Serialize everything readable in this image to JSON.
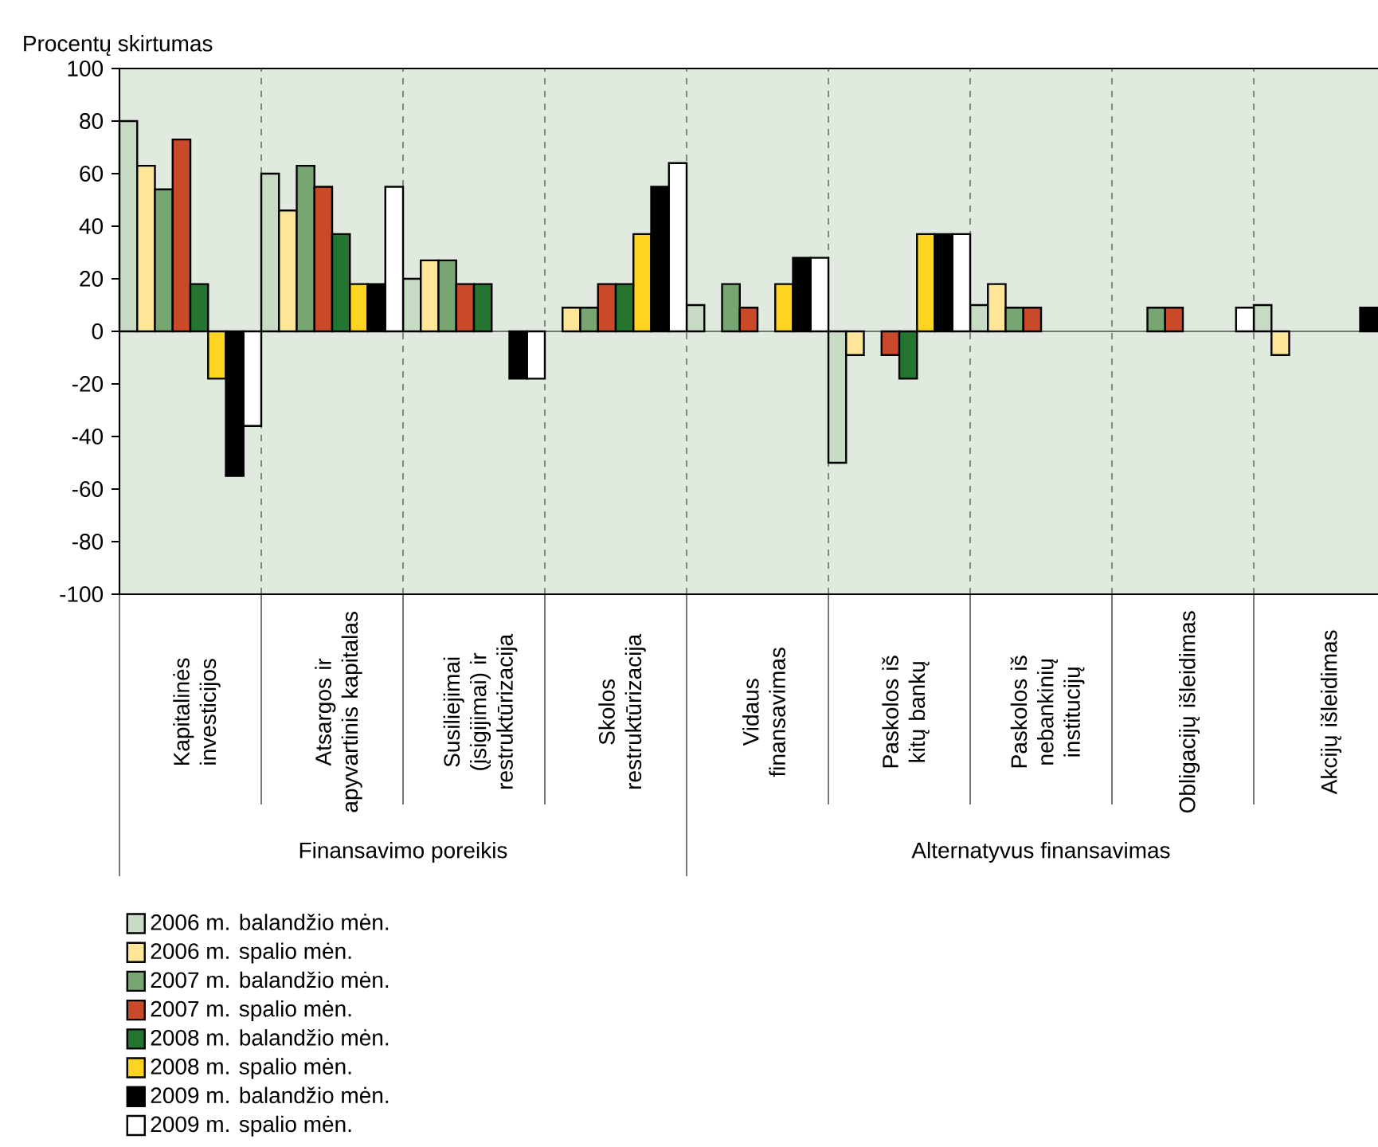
{
  "chart_data": {
    "type": "bar",
    "ylabel": "Procentų skirtumas",
    "categories": [
      "Kapitalinės investicijos",
      "Atsargos ir apyvartinis kapitalas",
      "Susiliejimai (įsigijimai) ir restruktūrizacija",
      "Skolos restruktūrizacija",
      "Vidaus finansavimas",
      "Paskolos iš kitų bankų",
      "Paskolos iš nebankinių institucijų",
      "Obligacijų išleidimas",
      "Akcijų išleidimas"
    ],
    "series": [
      {
        "name": "2006 m. balandžio mėn.",
        "color": "#c8dcc5",
        "values": [
          80,
          60,
          20,
          null,
          10,
          -50,
          10,
          null,
          10
        ]
      },
      {
        "name": "2006 m. spalio mėn.",
        "color": "#fde69a",
        "values": [
          63,
          46,
          27,
          9,
          null,
          -9,
          18,
          null,
          -9
        ]
      },
      {
        "name": "2007 m. balandžio mėn.",
        "color": "#78a672",
        "values": [
          54,
          63,
          27,
          9,
          18,
          null,
          9,
          9,
          null
        ]
      },
      {
        "name": "2007 m. spalio mėn.",
        "color": "#c84a2a",
        "values": [
          73,
          55,
          18,
          18,
          9,
          -9,
          9,
          9,
          null
        ]
      },
      {
        "name": "2008 m. balandžio mėn.",
        "color": "#237530",
        "values": [
          18,
          37,
          18,
          18,
          null,
          -18,
          null,
          null,
          null
        ]
      },
      {
        "name": "2008 m. spalio mėn.",
        "color": "#fed51e",
        "values": [
          -18,
          18,
          null,
          37,
          18,
          37,
          null,
          null,
          null
        ]
      },
      {
        "name": "2009 m. balandžio mėn.",
        "color": "#000000",
        "values": [
          -55,
          18,
          -18,
          55,
          28,
          37,
          null,
          null,
          9
        ]
      },
      {
        "name": "2009 m. spalio mėn.",
        "color": "#ffffff",
        "values": [
          -36,
          55,
          -18,
          64,
          28,
          37,
          null,
          9,
          null
        ]
      }
    ],
    "annotations": [
      "Finansavimo poreikis",
      "Alternatyvus finansavimas"
    ],
    "ylim": [
      -100,
      100
    ],
    "yticks": [
      -100,
      -80,
      -60,
      -40,
      -20,
      0,
      20,
      40,
      60,
      80,
      100
    ],
    "grid": false,
    "legend": "bottom left"
  }
}
